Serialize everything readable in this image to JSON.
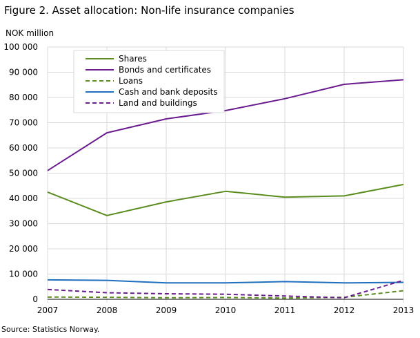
{
  "figure": {
    "title": "Figure 2. Asset allocation: Non-life insurance companies",
    "source": "Source: Statistics Norway."
  },
  "chart_data": {
    "type": "line",
    "title": "Figure 2. Asset allocation: Non-life insurance companies",
    "ylabel": "NOK million",
    "xlabel": "",
    "x": [
      "2007",
      "2008",
      "2009",
      "2010",
      "2011",
      "2012",
      "2013"
    ],
    "ylim": [
      0,
      100000
    ],
    "yticks": [
      0,
      10000,
      20000,
      30000,
      40000,
      50000,
      60000,
      70000,
      80000,
      90000,
      100000
    ],
    "ytick_labels": [
      "0",
      "10 000",
      "20 000",
      "30 000",
      "40 000",
      "50 000",
      "60 000",
      "70 000",
      "80 000",
      "90 000",
      "100 000"
    ],
    "grid": "horizontal",
    "legend_position": "top-left",
    "series": [
      {
        "name": "Shares",
        "color": "#5a8c1e",
        "dash": "solid",
        "values": [
          42500,
          33200,
          38600,
          42800,
          40500,
          41000,
          45500
        ]
      },
      {
        "name": "Bonds and certificates",
        "color": "#6a1b8e",
        "dash": "solid",
        "values": [
          51000,
          66000,
          71500,
          74800,
          79500,
          85200,
          87000
        ]
      },
      {
        "name": "Loans",
        "color": "#5a8c1e",
        "dash": "dashed",
        "values": [
          900,
          800,
          600,
          700,
          500,
          800,
          3400
        ]
      },
      {
        "name": "Cash and bank deposits",
        "color": "#1f6fbf",
        "dash": "solid",
        "values": [
          7700,
          7500,
          6500,
          6500,
          7000,
          6500,
          6700
        ]
      },
      {
        "name": "Land and buildings",
        "color": "#6a1b8e",
        "dash": "dashed",
        "values": [
          3900,
          2600,
          2200,
          2000,
          1300,
          600,
          7500
        ]
      }
    ]
  }
}
